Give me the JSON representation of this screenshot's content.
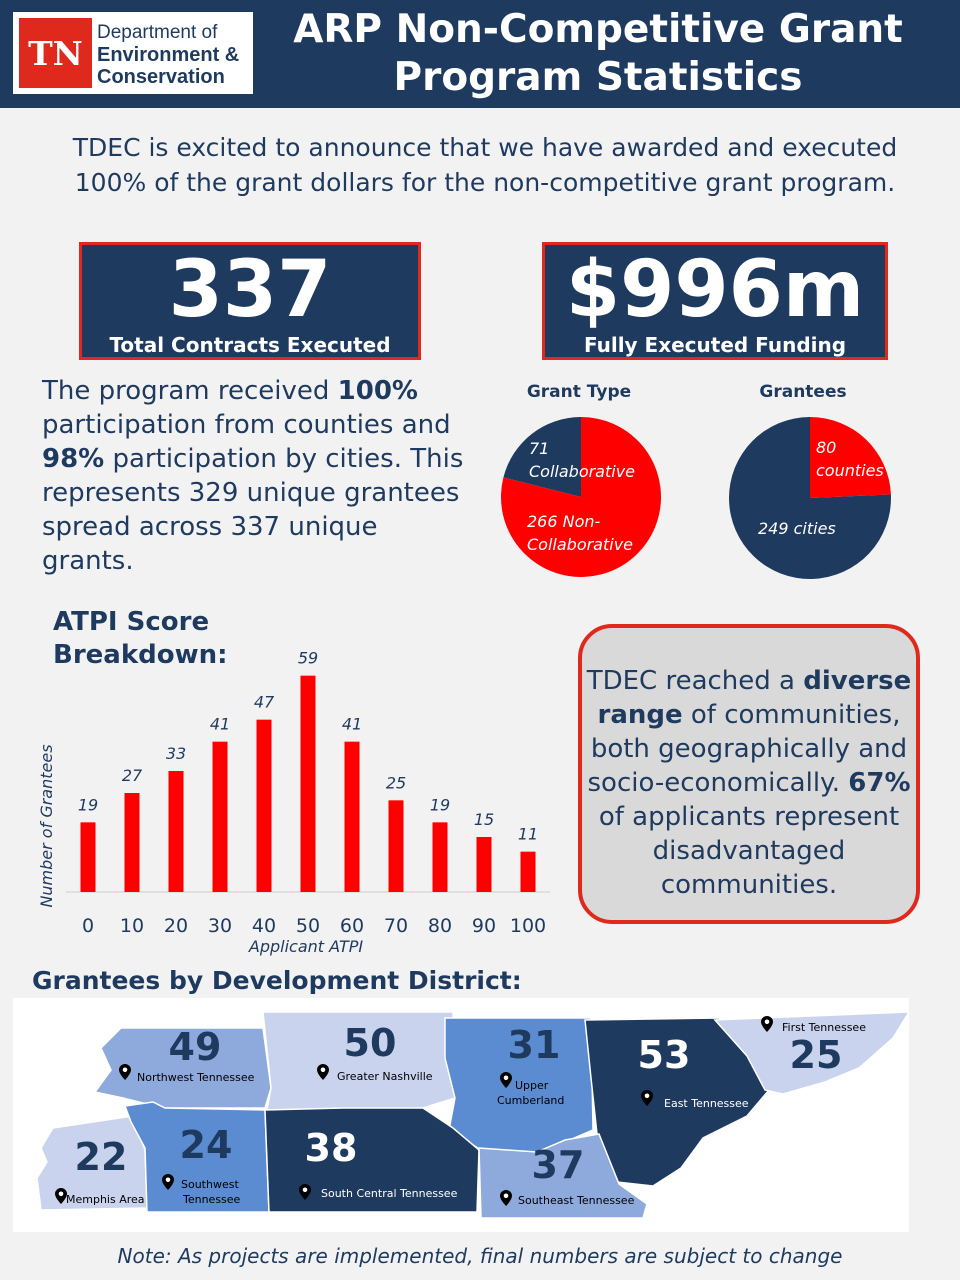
{
  "header": {
    "logo_mark": "TN",
    "dept_line1": "Department of",
    "dept_line2": "Environment &",
    "dept_line3": "Conservation",
    "title_line1": "ARP Non-Competitive Grant",
    "title_line2": "Program Statistics"
  },
  "intro": "TDEC is excited to announce that we have awarded and executed 100% of the grant dollars for the non-competitive grant program.",
  "stats": [
    {
      "value": "337",
      "label": "Total Contracts Executed"
    },
    {
      "value": "$996m",
      "label": "Fully Executed Funding"
    }
  ],
  "participation": {
    "p1": "The program received ",
    "b1": "100%",
    "p2": " participation from counties and ",
    "b2": "98%",
    "p3": " participation by cities. This represents 329 unique grantees spread across 337 unique grants."
  },
  "colors": {
    "navy": "#1f3a5f",
    "red": "#e0291d",
    "gray_box": "#d9d9d9"
  },
  "pies": [
    {
      "title": "Grant Type",
      "slices": [
        {
          "label_line1": "71",
          "label_line2": "Collaborative",
          "value": 71,
          "color": "#1f3a5f"
        },
        {
          "label_line1": "266 Non-",
          "label_line2": "Collaborative",
          "value": 266,
          "color": "#ff0000"
        }
      ]
    },
    {
      "title": "Grantees",
      "slices": [
        {
          "label_line1": "80",
          "label_line2": "counties",
          "value": 80,
          "color": "#ff0000"
        },
        {
          "label_line1": "249 cities",
          "label_line2": "",
          "value": 249,
          "color": "#1f3a5f"
        }
      ]
    }
  ],
  "atpi": {
    "title_line1": "ATPI Score",
    "title_line2": "Breakdown:"
  },
  "chart_data": {
    "type": "bar",
    "title": "ATPI Score Breakdown:",
    "xlabel": "Applicant ATPI",
    "ylabel": "Number of Grantees",
    "categories": [
      "0",
      "10",
      "20",
      "30",
      "40",
      "50",
      "60",
      "70",
      "80",
      "90",
      "100"
    ],
    "values": [
      19,
      27,
      33,
      41,
      47,
      59,
      41,
      25,
      19,
      15,
      11
    ],
    "ylim": [
      0,
      60
    ],
    "grid": false,
    "bar_color": "#ff0000"
  },
  "diverse": {
    "p1": "TDEC reached a ",
    "b1": "diverse range",
    "p2": " of communities, both geographically and socio-economically. ",
    "b2": "67%",
    "p3": " of applicants represent disadvantaged communities."
  },
  "district_title": "Grantees by Development District:",
  "districts": [
    {
      "name": "Northwest Tennessee",
      "count": "49",
      "color": "#8ea9db"
    },
    {
      "name": "Greater Nashville",
      "count": "50",
      "color": "#c9d3ee"
    },
    {
      "name": "Upper Cumberland",
      "count": "31",
      "color": "#5b8bd0"
    },
    {
      "name": "East Tennessee",
      "count": "53",
      "color": "#1f3a5f"
    },
    {
      "name": "First Tennessee",
      "count": "25",
      "color": "#c9d3ee"
    },
    {
      "name": "Memphis Area",
      "count": "22",
      "color": "#c9d3ee"
    },
    {
      "name": "Southwest Tennessee",
      "count": "24",
      "color": "#5b8bd0"
    },
    {
      "name": "South Central Tennessee",
      "count": "38",
      "color": "#1f3a5f"
    },
    {
      "name": "Southeast Tennessee",
      "count": "37",
      "color": "#8ea9db"
    }
  ],
  "district_label_parts": {
    "upper_cumberland_l1": "Upper",
    "upper_cumberland_l2": "Cumberland",
    "southwest_l1": "Southwest",
    "southwest_l2": "Tennessee"
  },
  "note": "Note: As projects are implemented, final numbers are subject to change"
}
